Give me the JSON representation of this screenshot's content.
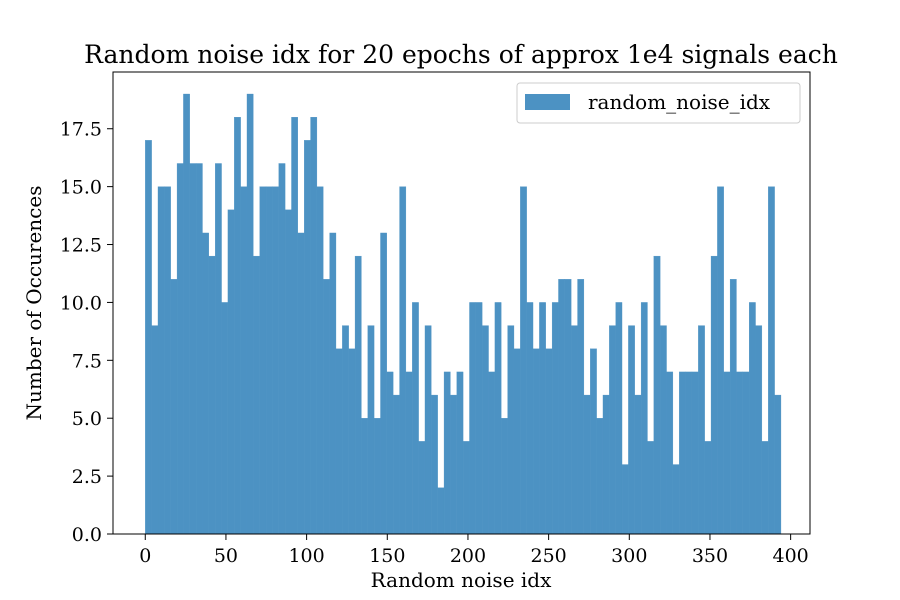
{
  "chart_data": {
    "type": "bar",
    "title": "Random noise idx for 20 epochs of approx 1e4 signals each",
    "xlabel": "Random noise idx",
    "ylabel": "Number of Occurences",
    "bar_color": "#4c92c3",
    "xlim": [
      -20,
      412
    ],
    "ylim": [
      0,
      19.95
    ],
    "xticks": [
      0,
      50,
      100,
      150,
      200,
      250,
      300,
      350,
      400
    ],
    "xtick_labels": [
      "0",
      "50",
      "100",
      "150",
      "200",
      "250",
      "300",
      "350",
      "400"
    ],
    "yticks": [
      0,
      2.5,
      5,
      7.5,
      10,
      12.5,
      15,
      17.5
    ],
    "ytick_labels": [
      "0.0",
      "2.5",
      "5.0",
      "7.5",
      "10.0",
      "12.5",
      "15.0",
      "17.5"
    ],
    "legend": {
      "position": "upper-right",
      "entries": [
        "random_noise_idx"
      ]
    },
    "grid": false,
    "bin_start": 0,
    "bin_width": 3.94,
    "counts": [
      17,
      9,
      15,
      15,
      11,
      16,
      19,
      16,
      16,
      13,
      12,
      16,
      10,
      14,
      18,
      15,
      19,
      12,
      15,
      15,
      15,
      16,
      14,
      18,
      13,
      17,
      18,
      15,
      11,
      13,
      8,
      9,
      8,
      12,
      5,
      9,
      5,
      13,
      7,
      6,
      15,
      7,
      10,
      4,
      9,
      6,
      2,
      7,
      6,
      7,
      4,
      10,
      10,
      9,
      7,
      10,
      5,
      9,
      8,
      15,
      10,
      8,
      10,
      8,
      10,
      11,
      11,
      9,
      11,
      6,
      8,
      5,
      6,
      9,
      10,
      3,
      9,
      6,
      10,
      4,
      12,
      9,
      7,
      3,
      7,
      7,
      7,
      9,
      4,
      12,
      15,
      7,
      11,
      7,
      7,
      10,
      9,
      4,
      15,
      6
    ]
  }
}
